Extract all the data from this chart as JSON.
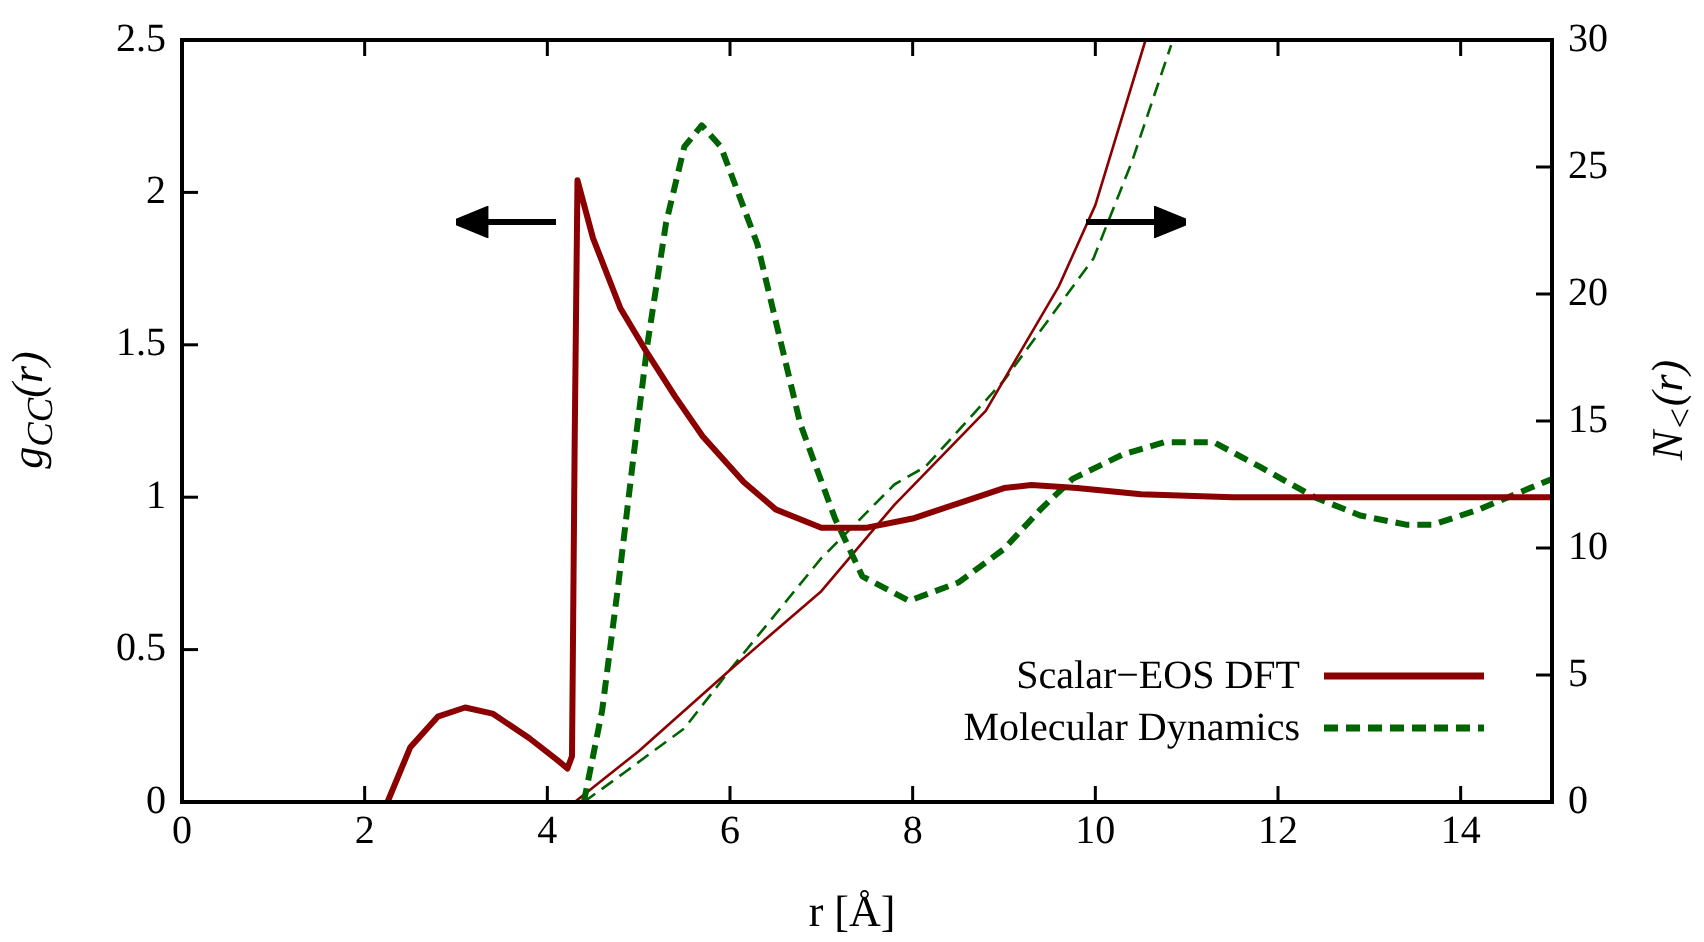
{
  "chart_data": {
    "type": "line",
    "xlabel": "r [Å]",
    "ylabel": "g$_{CC}$(r)",
    "y2label": "N$_{<}$(r)",
    "xlim": [
      0,
      15
    ],
    "xticks": [
      0,
      2,
      4,
      6,
      8,
      10,
      12,
      14
    ],
    "ylim": [
      0,
      2.5
    ],
    "yticks": [
      0,
      0.5,
      1,
      1.5,
      2,
      2.5
    ],
    "y2lim": [
      0,
      30
    ],
    "y2ticks": [
      0,
      5,
      10,
      15,
      20,
      25,
      30
    ],
    "legend": "bottom right",
    "grid": false,
    "series": [
      {
        "name": "Scalar−EOS DFT",
        "color": "#8b0000",
        "line_style": "solid",
        "x": [
          2.25,
          2.5,
          2.8,
          3.1,
          3.4,
          3.8,
          4.1,
          4.22,
          4.27,
          4.3,
          4.33,
          4.5,
          4.8,
          5.1,
          5.4,
          5.7,
          6.15,
          6.5,
          7.0,
          7.5,
          8.0,
          8.5,
          9.0,
          9.3,
          9.8,
          10.5,
          11.5,
          12.5,
          13.5,
          15.0
        ],
        "values": [
          0,
          0.18,
          0.28,
          0.31,
          0.29,
          0.21,
          0.14,
          0.11,
          0.15,
          1.2,
          2.04,
          1.85,
          1.62,
          1.47,
          1.33,
          1.2,
          1.05,
          0.96,
          0.9,
          0.9,
          0.93,
          0.98,
          1.03,
          1.04,
          1.03,
          1.01,
          1.0,
          1.0,
          1.0,
          1.0
        ]
      },
      {
        "name": "Molecular Dynamics",
        "color": "#006400",
        "line_style": "dashed",
        "x": [
          4.4,
          4.6,
          4.78,
          4.95,
          5.1,
          5.3,
          5.5,
          5.69,
          5.9,
          6.3,
          6.77,
          7.15,
          7.45,
          7.96,
          8.5,
          9.0,
          9.4,
          9.75,
          10.3,
          10.75,
          11.3,
          11.8,
          12.4,
          12.9,
          13.4,
          13.7,
          14.2,
          15.0
        ],
        "values": [
          0,
          0.3,
          0.72,
          1.15,
          1.51,
          1.9,
          2.15,
          2.22,
          2.15,
          1.83,
          1.24,
          0.93,
          0.74,
          0.66,
          0.72,
          0.83,
          0.96,
          1.06,
          1.14,
          1.18,
          1.18,
          1.1,
          1.0,
          0.94,
          0.91,
          0.91,
          0.96,
          1.06
        ]
      },
      {
        "color": "#8b0000",
        "line_style": "solid",
        "axis": "y2",
        "x": [
          4.3,
          5.0,
          6.0,
          7.0,
          7.8,
          8.8,
          9.6,
          10.0,
          10.55
        ],
        "values": [
          0,
          2,
          5.2,
          8.3,
          11.7,
          15.4,
          20.3,
          23.5,
          30
        ]
      },
      {
        "color": "#006400",
        "line_style": "dashed",
        "axis": "y2",
        "x": [
          4.4,
          4.86,
          5.5,
          6.0,
          7.0,
          7.8,
          8.14,
          9.0,
          9.98,
          10.4,
          10.83
        ],
        "values": [
          0,
          1.2,
          2.9,
          5.2,
          9.6,
          12.5,
          13.2,
          16.6,
          21.4,
          25.2,
          29.8
        ]
      }
    ]
  }
}
